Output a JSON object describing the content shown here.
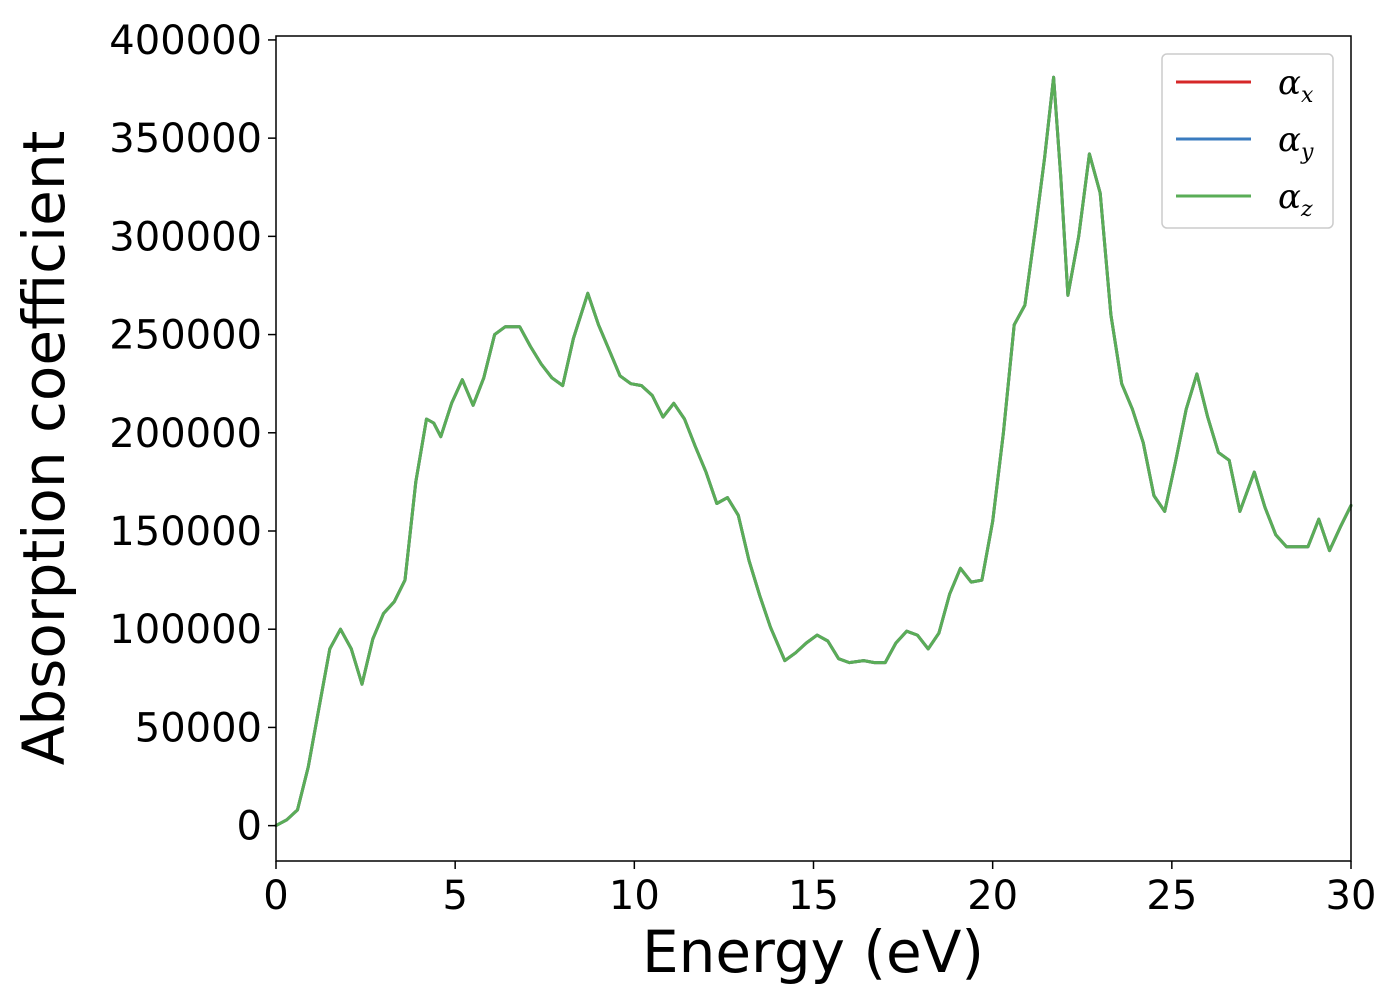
{
  "chart_data": {
    "type": "line",
    "xlabel": "Energy (eV)",
    "ylabel": "Absorption coefficient",
    "xlim": [
      0,
      30
    ],
    "ylim": [
      -18000,
      402000
    ],
    "xticks": [
      0,
      5,
      10,
      15,
      20,
      25,
      30
    ],
    "yticks": [
      0,
      50000,
      100000,
      150000,
      200000,
      250000,
      300000,
      350000,
      400000
    ],
    "grid": false,
    "legend_position": "top-right",
    "x": [
      0,
      0.3,
      0.6,
      0.9,
      1.2,
      1.5,
      1.8,
      2.1,
      2.4,
      2.7,
      3.0,
      3.3,
      3.6,
      3.9,
      4.2,
      4.4,
      4.6,
      4.9,
      5.2,
      5.5,
      5.8,
      6.1,
      6.4,
      6.8,
      7.1,
      7.4,
      7.7,
      8.0,
      8.3,
      8.7,
      9.0,
      9.3,
      9.6,
      9.9,
      10.2,
      10.5,
      10.8,
      11.1,
      11.4,
      11.7,
      12.0,
      12.3,
      12.6,
      12.9,
      13.2,
      13.5,
      13.8,
      14.2,
      14.5,
      14.8,
      15.1,
      15.4,
      15.7,
      16.0,
      16.4,
      16.7,
      17.0,
      17.3,
      17.6,
      17.9,
      18.2,
      18.5,
      18.8,
      19.1,
      19.4,
      19.7,
      20.0,
      20.3,
      20.6,
      20.9,
      21.2,
      21.45,
      21.7,
      21.9,
      22.1,
      22.4,
      22.7,
      23.0,
      23.3,
      23.6,
      23.9,
      24.2,
      24.5,
      24.8,
      25.1,
      25.4,
      25.7,
      26.0,
      26.3,
      26.6,
      26.9,
      27.3,
      27.6,
      27.9,
      28.2,
      28.5,
      28.8,
      29.1,
      29.4,
      29.7,
      30.0
    ],
    "series": [
      {
        "name": "α_x",
        "color": "#d62728",
        "values": [
          0,
          3000,
          8000,
          30000,
          60000,
          90000,
          100000,
          90000,
          72000,
          95000,
          108000,
          114000,
          125000,
          175000,
          207000,
          205000,
          198000,
          215000,
          227000,
          214000,
          228000,
          250000,
          254000,
          254000,
          244000,
          235000,
          228000,
          224000,
          248000,
          271000,
          255000,
          242000,
          229000,
          225000,
          224000,
          219000,
          208000,
          215000,
          207000,
          193000,
          180000,
          164000,
          167000,
          158000,
          135000,
          117000,
          101000,
          84000,
          88000,
          93000,
          97000,
          94000,
          85000,
          83000,
          84000,
          83000,
          83000,
          93000,
          99000,
          97000,
          90000,
          98000,
          118000,
          131000,
          124000,
          125000,
          155000,
          200000,
          255000,
          265000,
          305000,
          340000,
          381000,
          330000,
          270000,
          300000,
          342000,
          322000,
          260000,
          225000,
          212000,
          195000,
          168000,
          160000,
          185000,
          212000,
          230000,
          208000,
          190000,
          186000,
          160000,
          180000,
          162000,
          148000,
          142000,
          142000,
          142000,
          156000,
          140000,
          152000,
          163000
        ]
      },
      {
        "name": "α_y",
        "color": "#3a7bbf",
        "values": [
          0,
          3000,
          8000,
          30000,
          60000,
          90000,
          100000,
          90000,
          72000,
          95000,
          108000,
          114000,
          125000,
          175000,
          207000,
          205000,
          198000,
          215000,
          227000,
          214000,
          228000,
          250000,
          254000,
          254000,
          244000,
          235000,
          228000,
          224000,
          248000,
          271000,
          255000,
          242000,
          229000,
          225000,
          224000,
          219000,
          208000,
          215000,
          207000,
          193000,
          180000,
          164000,
          167000,
          158000,
          135000,
          117000,
          101000,
          84000,
          88000,
          93000,
          97000,
          94000,
          85000,
          83000,
          84000,
          83000,
          83000,
          93000,
          99000,
          97000,
          90000,
          98000,
          118000,
          131000,
          124000,
          125000,
          155000,
          200000,
          255000,
          265000,
          305000,
          340000,
          381000,
          330000,
          270000,
          300000,
          342000,
          322000,
          260000,
          225000,
          212000,
          195000,
          168000,
          160000,
          185000,
          212000,
          230000,
          208000,
          190000,
          186000,
          160000,
          180000,
          162000,
          148000,
          142000,
          142000,
          142000,
          156000,
          140000,
          152000,
          163000
        ]
      },
      {
        "name": "α_z",
        "color": "#5aad57",
        "values": [
          0,
          3000,
          8000,
          30000,
          60000,
          90000,
          100000,
          90000,
          72000,
          95000,
          108000,
          114000,
          125000,
          175000,
          207000,
          205000,
          198000,
          215000,
          227000,
          214000,
          228000,
          250000,
          254000,
          254000,
          244000,
          235000,
          228000,
          224000,
          248000,
          271000,
          255000,
          242000,
          229000,
          225000,
          224000,
          219000,
          208000,
          215000,
          207000,
          193000,
          180000,
          164000,
          167000,
          158000,
          135000,
          117000,
          101000,
          84000,
          88000,
          93000,
          97000,
          94000,
          85000,
          83000,
          84000,
          83000,
          83000,
          93000,
          99000,
          97000,
          90000,
          98000,
          118000,
          131000,
          124000,
          125000,
          155000,
          200000,
          255000,
          265000,
          305000,
          340000,
          381000,
          330000,
          270000,
          300000,
          342000,
          322000,
          260000,
          225000,
          212000,
          195000,
          168000,
          160000,
          185000,
          212000,
          230000,
          208000,
          190000,
          186000,
          160000,
          180000,
          162000,
          148000,
          142000,
          142000,
          142000,
          156000,
          140000,
          152000,
          163000
        ]
      }
    ],
    "legend": [
      {
        "base": "α",
        "sub": "x"
      },
      {
        "base": "α",
        "sub": "y"
      },
      {
        "base": "α",
        "sub": "z"
      }
    ]
  }
}
